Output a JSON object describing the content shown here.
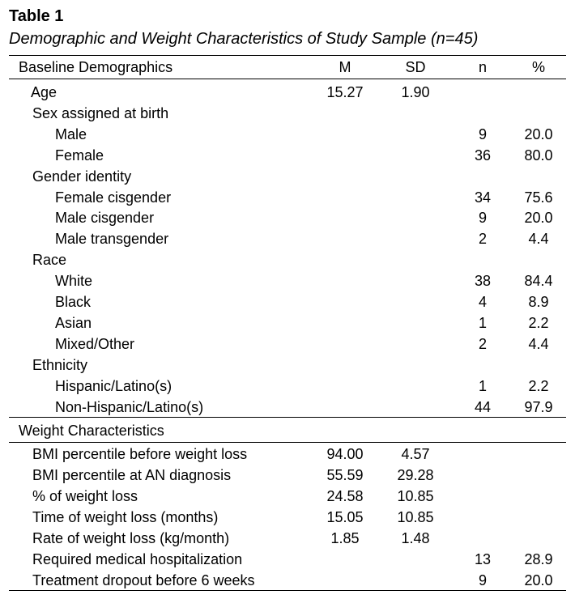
{
  "table": {
    "label": "Table 1",
    "caption": "Demographic and Weight Characteristics of Study Sample (n=45)",
    "headers": {
      "section": "Baseline Demographics",
      "m": "M",
      "sd": "SD",
      "n": "n",
      "pct": "%"
    },
    "baseline_rows": [
      {
        "label": "Age",
        "m": "15.27",
        "sd": "1.90",
        "n": "",
        "pct": ""
      },
      {
        "label": "Sex assigned at birth",
        "m": "",
        "sd": "",
        "n": "",
        "pct": ""
      },
      {
        "label": "Male",
        "m": "",
        "sd": "",
        "n": "9",
        "pct": "20.0"
      },
      {
        "label": "Female",
        "m": "",
        "sd": "",
        "n": "36",
        "pct": "80.0"
      },
      {
        "label": "Gender identity",
        "m": "",
        "sd": "",
        "n": "",
        "pct": ""
      },
      {
        "label": "Female cisgender",
        "m": "",
        "sd": "",
        "n": "34",
        "pct": "75.6"
      },
      {
        "label": "Male cisgender",
        "m": "",
        "sd": "",
        "n": "9",
        "pct": "20.0"
      },
      {
        "label": "Male transgender",
        "m": "",
        "sd": "",
        "n": "2",
        "pct": "4.4"
      },
      {
        "label": "Race",
        "m": "",
        "sd": "",
        "n": "",
        "pct": ""
      },
      {
        "label": "White",
        "m": "",
        "sd": "",
        "n": "38",
        "pct": "84.4"
      },
      {
        "label": "Black",
        "m": "",
        "sd": "",
        "n": "4",
        "pct": "8.9"
      },
      {
        "label": "Asian",
        "m": "",
        "sd": "",
        "n": "1",
        "pct": "2.2"
      },
      {
        "label": "Mixed/Other",
        "m": "",
        "sd": "",
        "n": "2",
        "pct": "4.4"
      },
      {
        "label": "Ethnicity",
        "m": "",
        "sd": "",
        "n": "",
        "pct": ""
      },
      {
        "label": "Hispanic/Latino(s)",
        "m": "",
        "sd": "",
        "n": "1",
        "pct": "2.2"
      },
      {
        "label": "Non-Hispanic/Latino(s)",
        "m": "",
        "sd": "",
        "n": "44",
        "pct": "97.9"
      }
    ],
    "weight_section": "Weight Characteristics",
    "weight_rows": [
      {
        "label": "BMI percentile before weight loss",
        "m": "94.00",
        "sd": "4.57",
        "n": "",
        "pct": ""
      },
      {
        "label": "BMI percentile at AN diagnosis",
        "m": "55.59",
        "sd": "29.28",
        "n": "",
        "pct": ""
      },
      {
        "label": "% of weight loss",
        "m": "24.58",
        "sd": "10.85",
        "n": "",
        "pct": ""
      },
      {
        "label": "Time of weight loss (months)",
        "m": "15.05",
        "sd": "10.85",
        "n": "",
        "pct": ""
      },
      {
        "label": "Rate of weight loss (kg/month)",
        "m": "1.85",
        "sd": "1.48",
        "n": "",
        "pct": ""
      },
      {
        "label": "Required medical hospitalization",
        "m": "",
        "sd": "",
        "n": "13",
        "pct": "28.9"
      },
      {
        "label": "Treatment dropout before 6 weeks",
        "m": "",
        "sd": "",
        "n": "9",
        "pct": "20.0"
      }
    ]
  }
}
